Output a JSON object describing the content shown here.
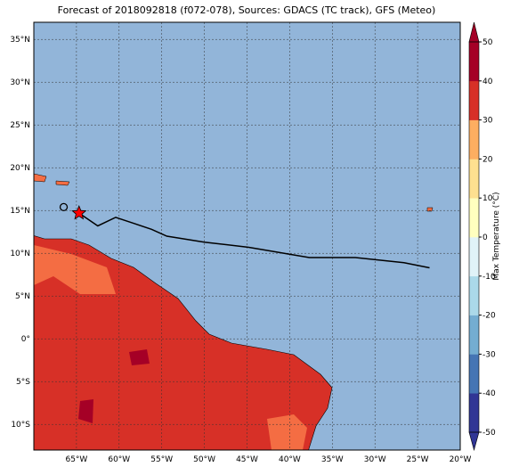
{
  "chart_data": {
    "type": "map",
    "title": "Forecast of 2018092818 (f072-078), Sources: GDACS (TC track), GFS (Meteo)",
    "xlim": [
      -70,
      -20
    ],
    "ylim": [
      -13,
      37
    ],
    "xticks": [
      {
        "value": -65,
        "label": "65°W"
      },
      {
        "value": -60,
        "label": "60°W"
      },
      {
        "value": -55,
        "label": "55°W"
      },
      {
        "value": -50,
        "label": "50°W"
      },
      {
        "value": -45,
        "label": "45°W"
      },
      {
        "value": -40,
        "label": "40°W"
      },
      {
        "value": -35,
        "label": "35°W"
      },
      {
        "value": -30,
        "label": "30°W"
      },
      {
        "value": -25,
        "label": "25°W"
      },
      {
        "value": -20,
        "label": "20°W"
      }
    ],
    "yticks": [
      {
        "value": 35,
        "label": "35°N"
      },
      {
        "value": 30,
        "label": "30°N"
      },
      {
        "value": 25,
        "label": "25°N"
      },
      {
        "value": 20,
        "label": "20°N"
      },
      {
        "value": 15,
        "label": "15°N"
      },
      {
        "value": 10,
        "label": "10°N"
      },
      {
        "value": 5,
        "label": "5°N"
      },
      {
        "value": 0,
        "label": "0°"
      },
      {
        "value": -5,
        "label": "5°S"
      },
      {
        "value": -10,
        "label": "10°S"
      }
    ],
    "grid": true,
    "track": {
      "color": "#000000",
      "x": [
        -64.7,
        -62.5,
        -60.4,
        -58.3,
        -56.2,
        -54.4,
        -50,
        -44.8,
        -40.1,
        -37.7,
        -32.3,
        -26.6,
        -23.6
      ],
      "y": [
        14.7,
        13.2,
        14.2,
        13.5,
        12.8,
        12.0,
        11.3,
        10.7,
        9.9,
        9.5,
        9.5,
        8.9,
        8.3
      ]
    },
    "past_position": {
      "x": -66.5,
      "y": 15.4
    },
    "current_position": {
      "x": -64.7,
      "y": 14.7,
      "color": "#ff0000"
    },
    "colorbar": {
      "label": "Max Temperature (°C)",
      "lim": [
        -50,
        50
      ],
      "ticks": [
        -50,
        -40,
        -30,
        -20,
        -10,
        0,
        10,
        20,
        30,
        40,
        50
      ],
      "colors": [
        "#313695",
        "#4575b4",
        "#74add1",
        "#abd9e9",
        "#e0f3f8",
        "#ffffbf",
        "#fee090",
        "#fdae61",
        "#d73027",
        "#a50026"
      ]
    }
  }
}
